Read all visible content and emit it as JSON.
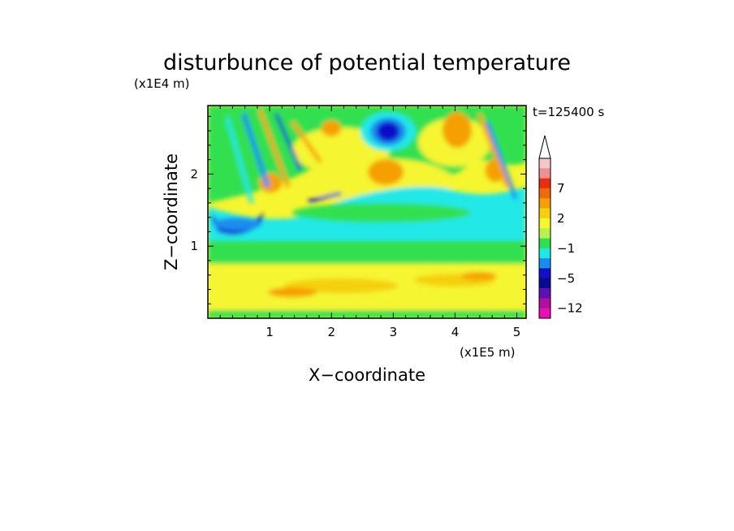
{
  "chart_data": {
    "type": "heatmap",
    "title": "disturbunce of potential temperature",
    "time_label": "t=125400 s",
    "xlabel": "X−coordinate",
    "ylabel": "Z−coordinate",
    "x_unit": "(x1E5 m)",
    "y_unit": "(x1E4 m)",
    "xlim": [
      0,
      5.15
    ],
    "ylim": [
      0,
      2.95
    ],
    "x_ticks": [
      1,
      2,
      3,
      4,
      5
    ],
    "y_ticks": [
      1,
      2
    ],
    "colorbar": {
      "labels": [
        "7",
        "2",
        "−1",
        "−5",
        "−12"
      ],
      "label_levels": [
        7,
        2,
        -1,
        -5,
        -12
      ],
      "levels_top_to_bottom": [
        11,
        9,
        7,
        5,
        3,
        2,
        1,
        0,
        -1,
        -2,
        -3,
        -5,
        -7,
        -9,
        -12
      ],
      "colors_top_to_bottom": [
        "#f5c8c8",
        "#f09090",
        "#e83010",
        "#f06a10",
        "#f5a000",
        "#f5d010",
        "#f5f530",
        "#b8f050",
        "#30e050",
        "#20e8e8",
        "#1a8cf0",
        "#1010c8",
        "#0a0a90",
        "#6010b0",
        "#b010a0",
        "#e810b0"
      ],
      "extend_top": true
    },
    "field_features": [
      {
        "x": 2.9,
        "z": 2.6,
        "type": "minimum",
        "value": -6
      },
      {
        "x": 4.0,
        "z": 2.55,
        "type": "maximum",
        "value": 4
      },
      {
        "x": 3.1,
        "z": 2.05,
        "type": "maximum",
        "value": 4
      },
      {
        "x": 0.4,
        "z": 1.3,
        "type": "minimum",
        "value": -5
      },
      {
        "x": 2.5,
        "z": 1.3,
        "type": "band",
        "value": -1
      }
    ],
    "grid": false,
    "legend": "right"
  }
}
